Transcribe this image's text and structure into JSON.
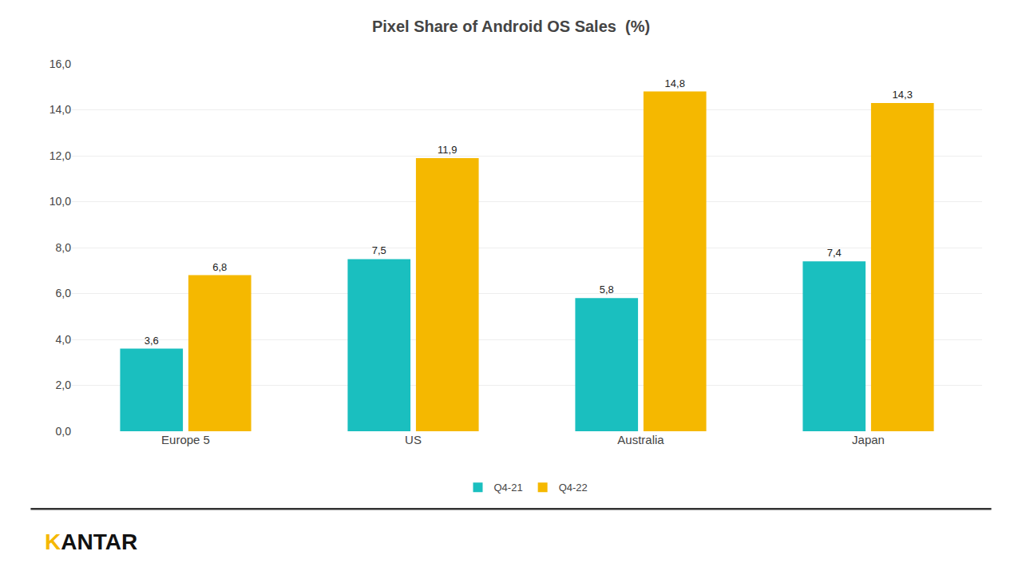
{
  "chart_data": {
    "type": "bar",
    "title": "Pixel Share of Android OS Sales  (%)",
    "categories": [
      "Europe 5",
      "US",
      "Australia",
      "Japan"
    ],
    "series": [
      {
        "name": "Q4-21",
        "color": "#1ABFBF",
        "values": [
          3.6,
          7.5,
          5.8,
          7.4
        ],
        "value_labels": [
          "3,6",
          "7,5",
          "5,8",
          "7,4"
        ]
      },
      {
        "name": "Q4-22",
        "color": "#F5B800",
        "values": [
          6.8,
          11.9,
          14.8,
          14.3
        ],
        "value_labels": [
          "6,8",
          "11,9",
          "14,8",
          "14,3"
        ]
      }
    ],
    "ylim": [
      0,
      16.0
    ],
    "yticks": [
      {
        "value": 0.0,
        "label": "0,0"
      },
      {
        "value": 2.0,
        "label": "2,0"
      },
      {
        "value": 4.0,
        "label": "4,0"
      },
      {
        "value": 6.0,
        "label": "6,0"
      },
      {
        "value": 8.0,
        "label": "8,0"
      },
      {
        "value": 10.0,
        "label": "10,0"
      },
      {
        "value": 12.0,
        "label": "12,0"
      },
      {
        "value": 14.0,
        "label": "14,0"
      },
      {
        "value": 16.0,
        "label": "16,0"
      }
    ],
    "grid": true,
    "data_labels": true,
    "legend": "bottom",
    "annotations": [
      {
        "text": "K",
        "color": "#F5B800"
      },
      {
        "text": "ANTAR",
        "color": "#111111"
      }
    ]
  }
}
